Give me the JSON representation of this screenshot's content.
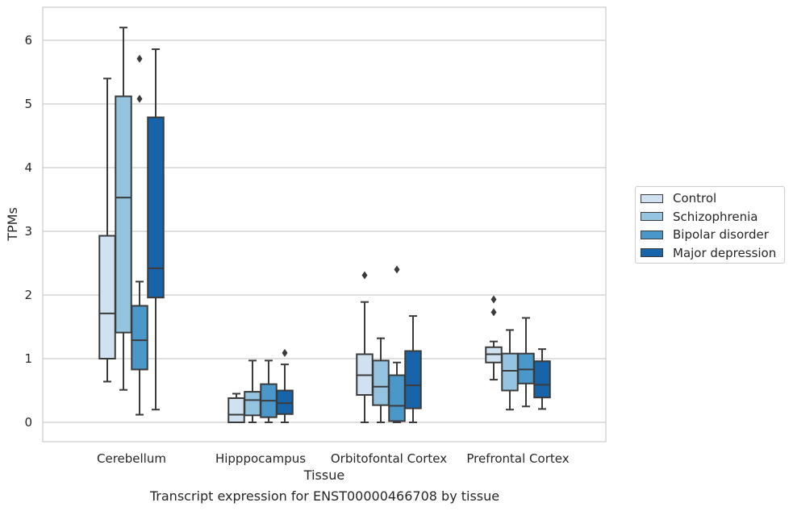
{
  "caption": "Transcript expression for ENST00000466708 by tissue",
  "colors": {
    "Control": "#d0e1f2",
    "Schizophrenia": "#94c4df",
    "Bipolar disorder": "#4a98c9",
    "Major depression": "#1764ab"
  },
  "chart_data": {
    "type": "box",
    "xlabel": "Tissue",
    "ylabel": "TPMs",
    "ylim": [
      -0.3,
      6.5
    ],
    "yticks": [
      0,
      1,
      2,
      3,
      4,
      5,
      6
    ],
    "grid": true,
    "legend": "right",
    "categories": [
      "Cerebellum",
      "Hipppocampus",
      "Orbitofontal Cortex",
      "Prefrontal Cortex"
    ],
    "series": [
      {
        "name": "Control",
        "boxes": [
          {
            "whislo": 0.64,
            "q1": 1.0,
            "med": 1.71,
            "q3": 2.93,
            "whishi": 5.4,
            "fliers": []
          },
          {
            "whislo": 0.0,
            "q1": 0.0,
            "med": 0.12,
            "q3": 0.38,
            "whishi": 0.45,
            "fliers": []
          },
          {
            "whislo": 0.0,
            "q1": 0.43,
            "med": 0.74,
            "q3": 1.07,
            "whishi": 1.89,
            "fliers": [
              2.31
            ]
          },
          {
            "whislo": 0.67,
            "q1": 0.94,
            "med": 1.07,
            "q3": 1.18,
            "whishi": 1.27,
            "fliers": [
              1.73,
              1.93
            ]
          }
        ]
      },
      {
        "name": "Schizophrenia",
        "boxes": [
          {
            "whislo": 0.51,
            "q1": 1.41,
            "med": 3.53,
            "q3": 5.12,
            "whishi": 6.2,
            "fliers": []
          },
          {
            "whislo": 0.0,
            "q1": 0.11,
            "med": 0.35,
            "q3": 0.48,
            "whishi": 0.97,
            "fliers": []
          },
          {
            "whislo": 0.0,
            "q1": 0.27,
            "med": 0.56,
            "q3": 0.97,
            "whishi": 1.32,
            "fliers": []
          },
          {
            "whislo": 0.2,
            "q1": 0.5,
            "med": 0.81,
            "q3": 1.08,
            "whishi": 1.45,
            "fliers": []
          }
        ]
      },
      {
        "name": "Bipolar disorder",
        "boxes": [
          {
            "whislo": 0.12,
            "q1": 0.83,
            "med": 1.29,
            "q3": 1.83,
            "whishi": 2.21,
            "fliers": [
              5.08,
              5.71
            ]
          },
          {
            "whislo": 0.0,
            "q1": 0.08,
            "med": 0.34,
            "q3": 0.6,
            "whishi": 0.97,
            "fliers": []
          },
          {
            "whislo": 0.0,
            "q1": 0.02,
            "med": 0.26,
            "q3": 0.74,
            "whishi": 0.94,
            "fliers": [
              2.4
            ]
          },
          {
            "whislo": 0.25,
            "q1": 0.61,
            "med": 0.83,
            "q3": 1.08,
            "whishi": 1.64,
            "fliers": []
          }
        ]
      },
      {
        "name": "Major depression",
        "boxes": [
          {
            "whislo": 0.2,
            "q1": 1.96,
            "med": 2.42,
            "q3": 4.79,
            "whishi": 5.86,
            "fliers": []
          },
          {
            "whislo": 0.0,
            "q1": 0.13,
            "med": 0.3,
            "q3": 0.5,
            "whishi": 0.91,
            "fliers": [
              1.09
            ]
          },
          {
            "whislo": 0.0,
            "q1": 0.22,
            "med": 0.58,
            "q3": 1.12,
            "whishi": 1.67,
            "fliers": []
          },
          {
            "whislo": 0.21,
            "q1": 0.39,
            "med": 0.59,
            "q3": 0.96,
            "whishi": 1.15,
            "fliers": []
          }
        ]
      }
    ]
  }
}
